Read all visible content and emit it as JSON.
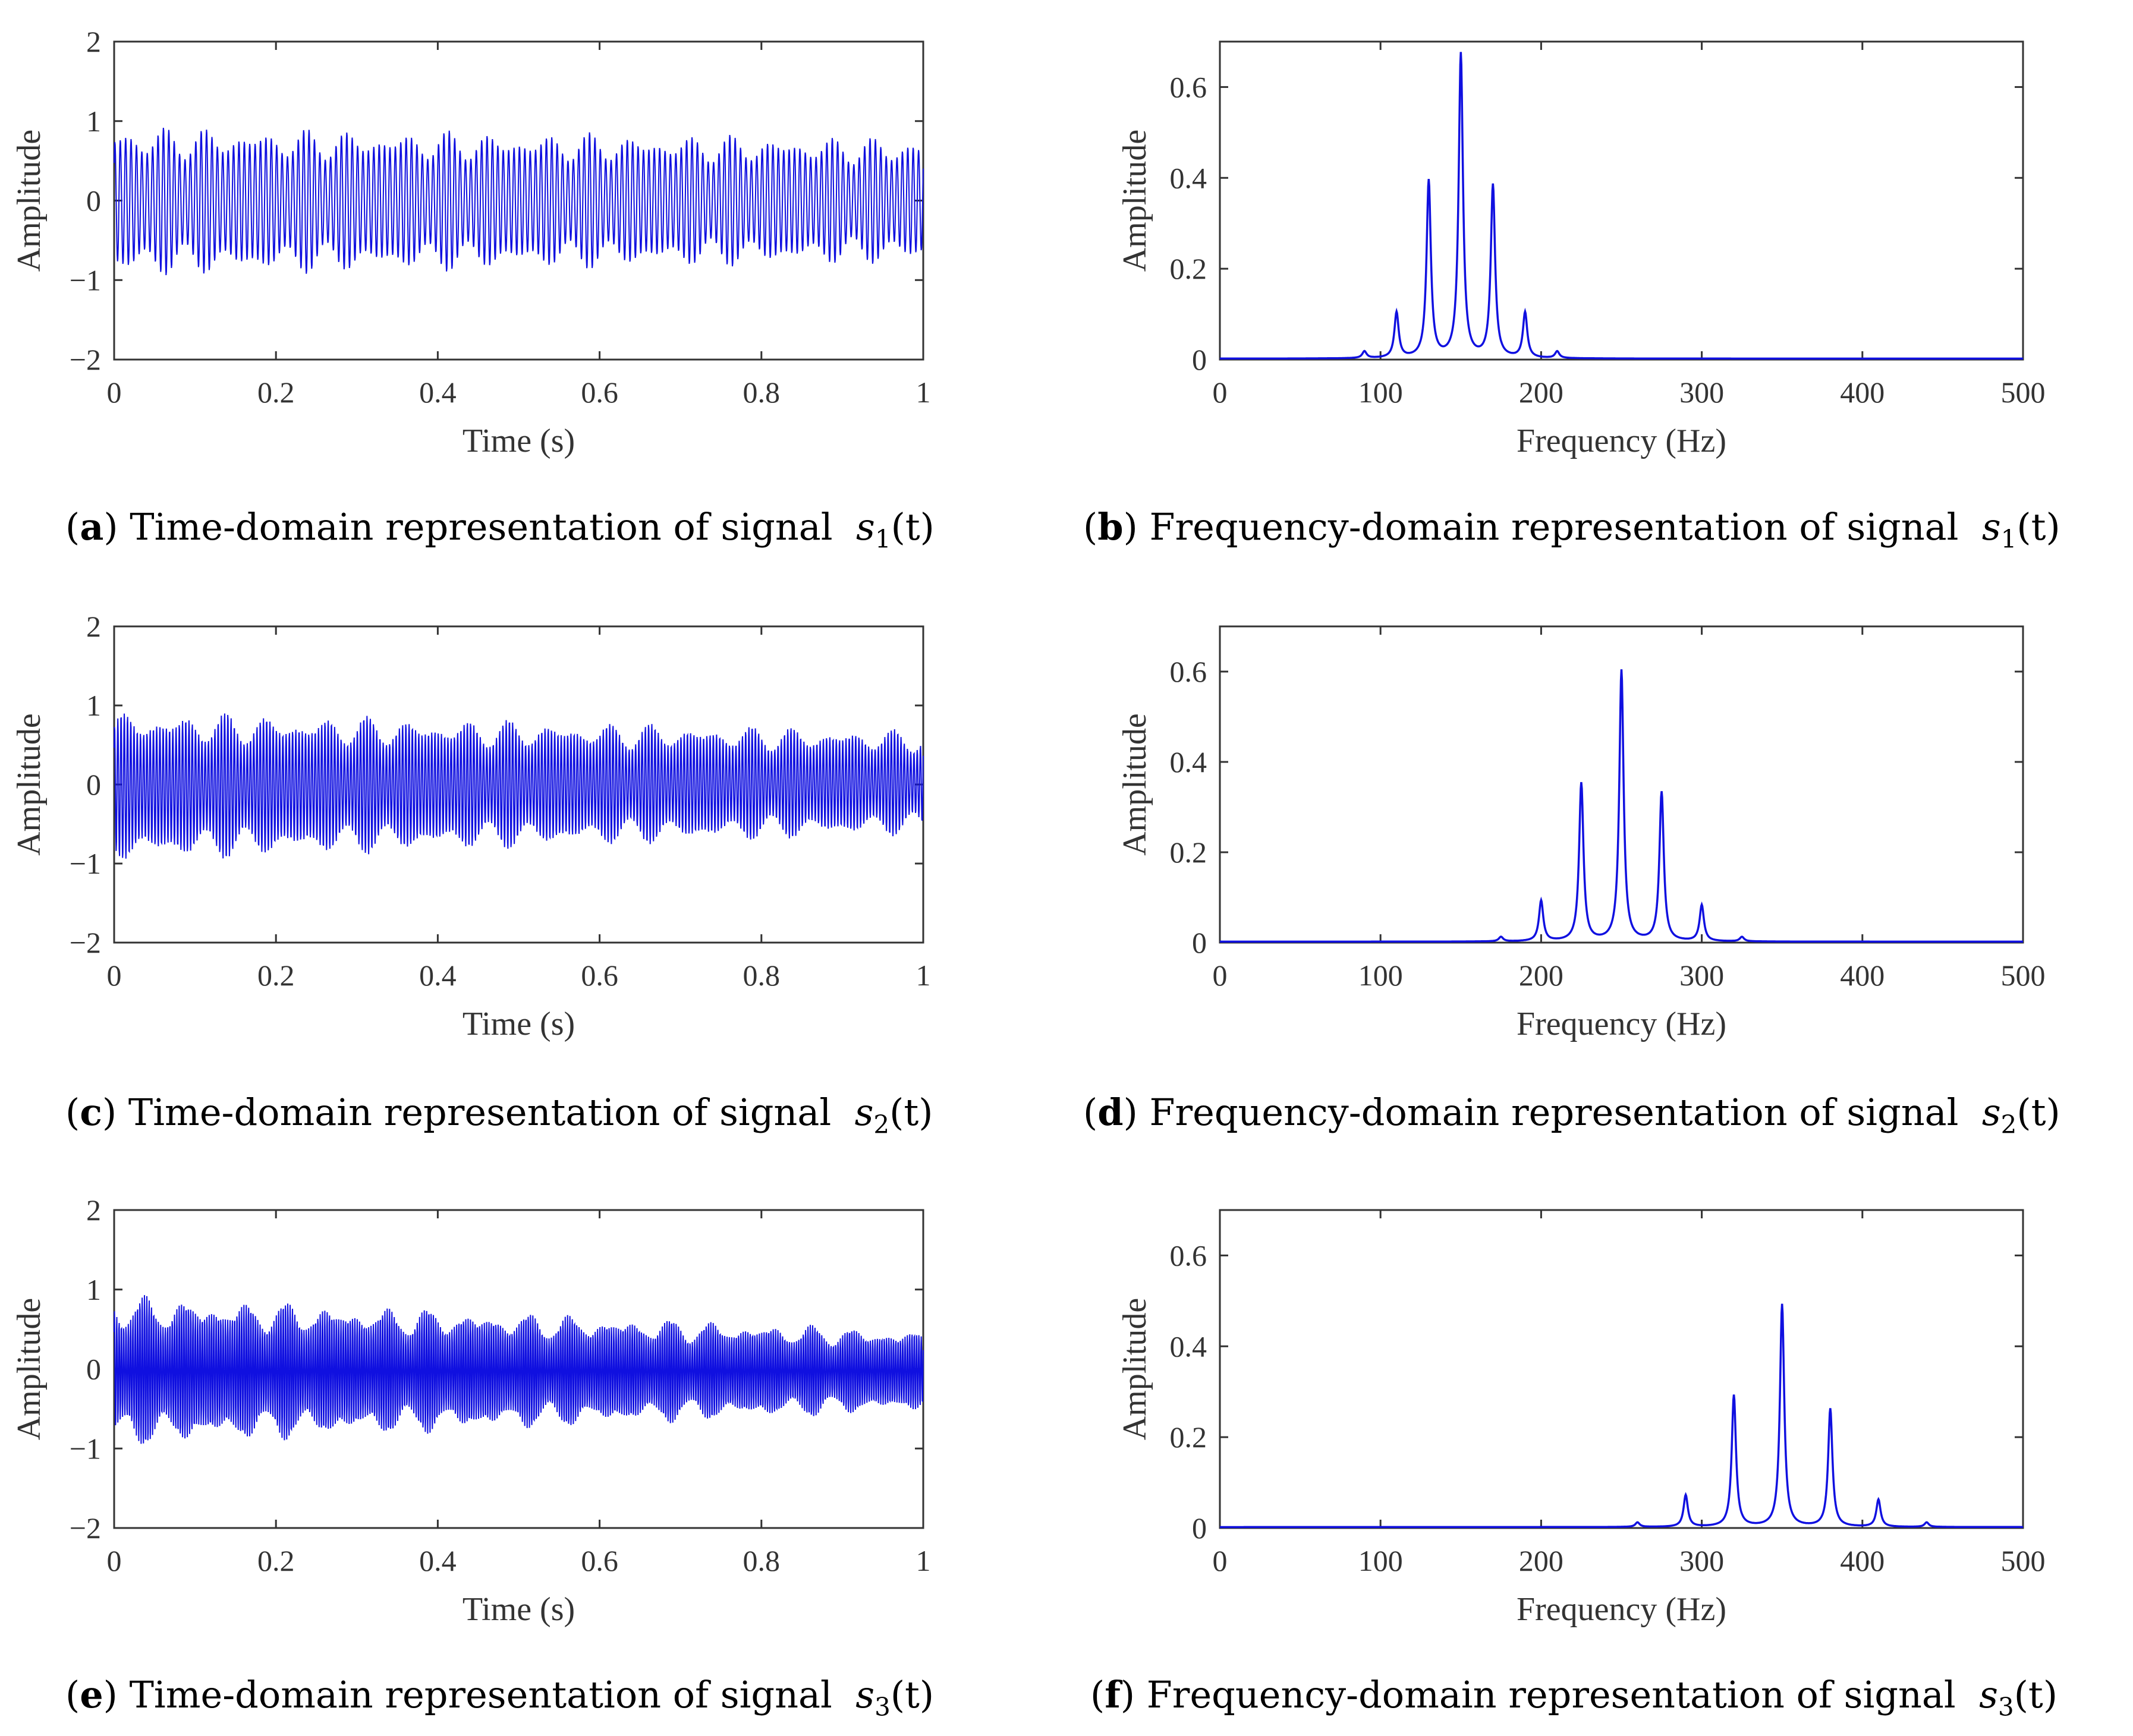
{
  "series_color": "#1010e0",
  "chart_data": [
    {
      "id": "a",
      "type": "line",
      "domain": "time",
      "xlabel": "Time (s)",
      "ylabel": "Amplitude",
      "xlim": [
        0,
        1
      ],
      "ylim": [
        -2,
        2
      ],
      "xticks": [
        "0",
        "0.2",
        "0.4",
        "0.6",
        "0.8",
        "1"
      ],
      "yticks": [
        "−2",
        "−1",
        "0",
        "1",
        "2"
      ],
      "envelope": {
        "upper_start": 0.95,
        "upper_end": 0.8,
        "lower_start": -0.97,
        "lower_end": -0.8,
        "carrier_hz": 150
      },
      "caption": {
        "letter": "a",
        "text": "Time-domain representation of signal",
        "symbol": "s",
        "sub": "1",
        "arg": "(t)"
      }
    },
    {
      "id": "b",
      "type": "line",
      "domain": "frequency",
      "xlabel": "Frequency (Hz)",
      "ylabel": "Amplitude",
      "xlim": [
        0,
        500
      ],
      "ylim": [
        0,
        0.7
      ],
      "xticks": [
        "0",
        "100",
        "200",
        "300",
        "400",
        "500"
      ],
      "yticks": [
        "0",
        "0.2",
        "0.4",
        "0.6"
      ],
      "peaks": [
        {
          "f": 90,
          "a": 0.015
        },
        {
          "f": 110,
          "a": 0.1
        },
        {
          "f": 130,
          "a": 0.39
        },
        {
          "f": 150,
          "a": 0.67
        },
        {
          "f": 170,
          "a": 0.38
        },
        {
          "f": 190,
          "a": 0.1
        },
        {
          "f": 210,
          "a": 0.015
        }
      ],
      "caption": {
        "letter": "b",
        "text": "Frequency-domain representation of signal",
        "symbol": "s",
        "sub": "1",
        "arg": "(t)"
      }
    },
    {
      "id": "c",
      "type": "line",
      "domain": "time",
      "xlabel": "Time (s)",
      "ylabel": "Amplitude",
      "xlim": [
        0,
        1
      ],
      "ylim": [
        -2,
        2
      ],
      "xticks": [
        "0",
        "0.2",
        "0.4",
        "0.6",
        "0.8",
        "1"
      ],
      "yticks": [
        "−2",
        "−1",
        "0",
        "1",
        "2"
      ],
      "envelope": {
        "upper_start": 0.95,
        "upper_end": 0.7,
        "lower_start": -1.0,
        "lower_end": -0.65,
        "carrier_hz": 250
      },
      "caption": {
        "letter": "c",
        "text": "Time-domain representation of signal",
        "symbol": "s",
        "sub": "2",
        "arg": "(t)"
      }
    },
    {
      "id": "d",
      "type": "line",
      "domain": "frequency",
      "xlabel": "Frequency (Hz)",
      "ylabel": "Amplitude",
      "xlim": [
        0,
        500
      ],
      "ylim": [
        0,
        0.7
      ],
      "xticks": [
        "0",
        "100",
        "200",
        "300",
        "400",
        "500"
      ],
      "yticks": [
        "0",
        "0.2",
        "0.4",
        "0.6"
      ],
      "peaks": [
        {
          "f": 175,
          "a": 0.01
        },
        {
          "f": 200,
          "a": 0.09
        },
        {
          "f": 225,
          "a": 0.35
        },
        {
          "f": 250,
          "a": 0.6
        },
        {
          "f": 275,
          "a": 0.33
        },
        {
          "f": 300,
          "a": 0.08
        },
        {
          "f": 325,
          "a": 0.01
        }
      ],
      "caption": {
        "letter": "d",
        "text": "Frequency-domain representation of signal",
        "symbol": "s",
        "sub": "2",
        "arg": "(t)"
      }
    },
    {
      "id": "e",
      "type": "line",
      "domain": "time",
      "xlabel": "Time (s)",
      "ylabel": "Amplitude",
      "xlim": [
        0,
        1
      ],
      "ylim": [
        -2,
        2
      ],
      "xticks": [
        "0",
        "0.2",
        "0.4",
        "0.6",
        "0.8",
        "1"
      ],
      "yticks": [
        "−2",
        "−1",
        "0",
        "1",
        "2"
      ],
      "envelope": {
        "upper_start": 0.95,
        "upper_end": 0.5,
        "lower_start": -1.0,
        "lower_end": -0.55,
        "carrier_hz": 350
      },
      "caption": {
        "letter": "e",
        "text": "Time-domain representation of signal",
        "symbol": "s",
        "sub": "3",
        "arg": "(t)"
      }
    },
    {
      "id": "f",
      "type": "line",
      "domain": "frequency",
      "xlabel": "Frequency (Hz)",
      "ylabel": "Amplitude",
      "xlim": [
        0,
        500
      ],
      "ylim": [
        0,
        0.7
      ],
      "xticks": [
        "0",
        "100",
        "200",
        "300",
        "400",
        "500"
      ],
      "yticks": [
        "0",
        "0.2",
        "0.4",
        "0.6"
      ],
      "peaks": [
        {
          "f": 260,
          "a": 0.01
        },
        {
          "f": 290,
          "a": 0.07
        },
        {
          "f": 320,
          "a": 0.29
        },
        {
          "f": 350,
          "a": 0.49
        },
        {
          "f": 380,
          "a": 0.26
        },
        {
          "f": 410,
          "a": 0.06
        },
        {
          "f": 440,
          "a": 0.01
        }
      ],
      "caption": {
        "letter": "f",
        "text": "Frequency-domain representation of signal",
        "symbol": "s",
        "sub": "3",
        "arg": "(t)"
      }
    }
  ]
}
